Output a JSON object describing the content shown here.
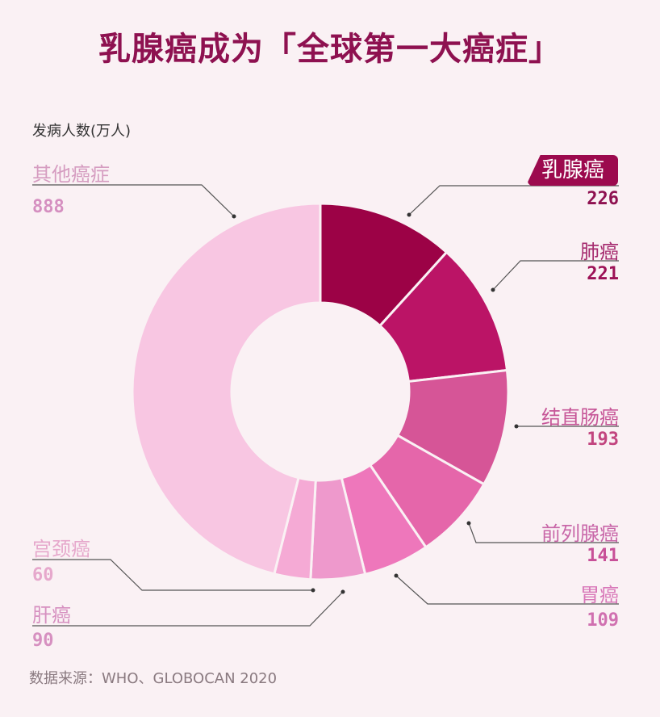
{
  "title": "乳腺癌成为「全球第一大癌症」",
  "unit_label": "发病人数(万人)",
  "source": "数据来源：WHO、GLOBOCAN 2020",
  "chart_data": {
    "type": "pie",
    "subtype": "donut",
    "title": "乳腺癌成为「全球第一大癌症」",
    "unit": "万人",
    "categories": [
      "乳腺癌",
      "肺癌",
      "结直肠癌",
      "前列腺癌",
      "胃癌",
      "肝癌",
      "宫颈癌",
      "其他癌症"
    ],
    "values": [
      226,
      221,
      193,
      141,
      109,
      90,
      60,
      888
    ],
    "colors": [
      "#9c0246",
      "#bb1466",
      "#d65597",
      "#e566aa",
      "#ee77bb",
      "#ee99cc",
      "#f5aad5",
      "#f8c6e2"
    ]
  },
  "labels": {
    "breast": {
      "name": "乳腺癌",
      "value": "226"
    },
    "lung": {
      "name": "肺癌",
      "value": "221"
    },
    "colorectal": {
      "name": "结直肠癌",
      "value": "193"
    },
    "prostate": {
      "name": "前列腺癌",
      "value": "141"
    },
    "stomach": {
      "name": "胃癌",
      "value": "109"
    },
    "liver": {
      "name": "肝癌",
      "value": "90"
    },
    "cervical": {
      "name": "宫颈癌",
      "value": "60"
    },
    "other": {
      "name": "其他癌症",
      "value": "888"
    }
  }
}
